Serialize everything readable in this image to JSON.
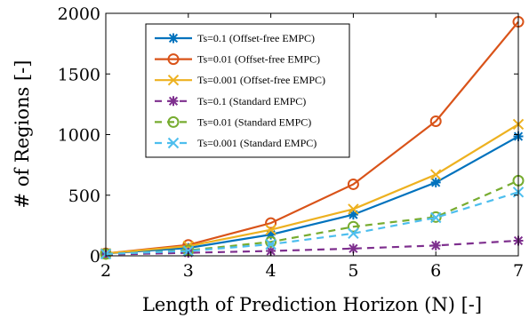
{
  "chart_data": {
    "type": "line",
    "xlabel": "Length of Prediction Horizon (N) [-]",
    "ylabel": "# of Regions [-]",
    "xlim": [
      2,
      7
    ],
    "ylim": [
      0,
      2000
    ],
    "xticks": [
      2,
      3,
      4,
      5,
      6,
      7
    ],
    "yticks": [
      0,
      500,
      1000,
      1500,
      2000
    ],
    "grid": false,
    "legend_position": "top-left",
    "x": [
      2,
      3,
      4,
      5,
      6,
      7
    ],
    "series": [
      {
        "name": "Ts=0.1 (Offset-free EMPC)",
        "color": "#0072bd",
        "dash": "solid",
        "marker": "asterisk",
        "values": [
          20,
          65,
          175,
          340,
          605,
          985
        ]
      },
      {
        "name": "Ts=0.01 (Offset-free EMPC)",
        "color": "#d95319",
        "dash": "solid",
        "marker": "circle",
        "values": [
          20,
          90,
          270,
          590,
          1110,
          1930
        ]
      },
      {
        "name": "Ts=0.001 (Offset-free EMPC)",
        "color": "#edb120",
        "dash": "solid",
        "marker": "x",
        "values": [
          20,
          80,
          215,
          385,
          670,
          1085
        ]
      },
      {
        "name": "Ts=0.1 (Standard EMPC)",
        "color": "#7e2f8e",
        "dash": "dashed",
        "marker": "asterisk",
        "values": [
          10,
          25,
          40,
          60,
          85,
          125
        ]
      },
      {
        "name": "Ts=0.01 (Standard EMPC)",
        "color": "#77ac30",
        "dash": "dashed",
        "marker": "circle",
        "values": [
          15,
          45,
          115,
          240,
          320,
          620
        ]
      },
      {
        "name": "Ts=0.001 (Standard EMPC)",
        "color": "#4dbeee",
        "dash": "dashed",
        "marker": "x",
        "values": [
          15,
          40,
          95,
          185,
          315,
          525
        ]
      }
    ]
  }
}
